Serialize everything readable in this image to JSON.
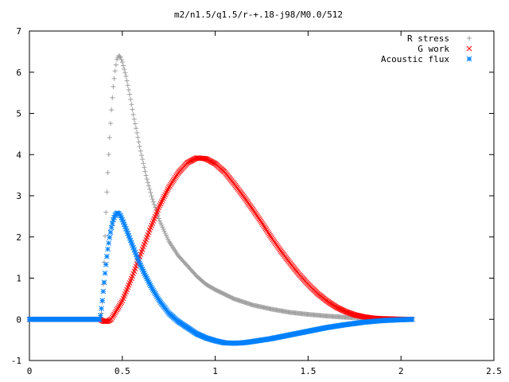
{
  "chart_data": {
    "type": "scatter",
    "title": "m2/n1.5/q1.5/r-+.18-j98/M0.0/512",
    "xlabel": "",
    "ylabel": "",
    "xlim": [
      0,
      2.5
    ],
    "ylim": [
      -1,
      7
    ],
    "grid": false,
    "legend_position": "top-right",
    "xticks": [
      {
        "value": 0,
        "label": "0"
      },
      {
        "value": 0.5,
        "label": "0.5"
      },
      {
        "value": 1,
        "label": "1"
      },
      {
        "value": 1.5,
        "label": "1.5"
      },
      {
        "value": 2,
        "label": "2"
      },
      {
        "value": 2.5,
        "label": "2.5"
      }
    ],
    "yticks": [
      {
        "value": -1,
        "label": "-1"
      },
      {
        "value": 0,
        "label": "0"
      },
      {
        "value": 1,
        "label": "1"
      },
      {
        "value": 2,
        "label": "2"
      },
      {
        "value": 3,
        "label": "3"
      },
      {
        "value": 4,
        "label": "4"
      },
      {
        "value": 5,
        "label": "5"
      },
      {
        "value": 6,
        "label": "6"
      },
      {
        "value": 7,
        "label": "7"
      }
    ],
    "series": [
      {
        "name": "R stress",
        "marker": "plus",
        "color": "#a0a0a0",
        "x": [
          0.0,
          0.1,
          0.2,
          0.3,
          0.38,
          0.39,
          0.4,
          0.41,
          0.42,
          0.43,
          0.44,
          0.45,
          0.46,
          0.47,
          0.48,
          0.49,
          0.5,
          0.52,
          0.54,
          0.56,
          0.58,
          0.6,
          0.63,
          0.66,
          0.7,
          0.75,
          0.8,
          0.85,
          0.9,
          0.95,
          1.0,
          1.1,
          1.2,
          1.3,
          1.4,
          1.5,
          1.6,
          1.7,
          1.8,
          1.9,
          2.0,
          2.06
        ],
        "y": [
          0.0,
          0.0,
          0.0,
          0.0,
          0.0,
          0.2,
          1.1,
          2.4,
          3.4,
          4.3,
          5.0,
          5.6,
          6.0,
          6.3,
          6.4,
          6.37,
          6.25,
          5.9,
          5.45,
          4.95,
          4.5,
          4.05,
          3.45,
          2.95,
          2.4,
          1.9,
          1.55,
          1.3,
          1.05,
          0.85,
          0.72,
          0.5,
          0.35,
          0.25,
          0.17,
          0.12,
          0.08,
          0.05,
          0.03,
          0.02,
          0.01,
          0.0
        ]
      },
      {
        "name": "G work",
        "marker": "cross",
        "color": "#ff0000",
        "x": [
          0.0,
          0.1,
          0.2,
          0.3,
          0.38,
          0.4,
          0.42,
          0.44,
          0.46,
          0.5,
          0.55,
          0.6,
          0.65,
          0.7,
          0.75,
          0.8,
          0.85,
          0.9,
          0.95,
          1.0,
          1.05,
          1.1,
          1.15,
          1.2,
          1.25,
          1.3,
          1.35,
          1.4,
          1.45,
          1.5,
          1.55,
          1.6,
          1.65,
          1.7,
          1.75,
          1.8,
          1.85,
          1.9,
          1.95,
          2.0,
          2.06
        ],
        "y": [
          0.0,
          0.0,
          0.0,
          0.0,
          0.0,
          -0.05,
          -0.05,
          0.0,
          0.15,
          0.45,
          1.0,
          1.6,
          2.2,
          2.75,
          3.2,
          3.55,
          3.8,
          3.92,
          3.9,
          3.78,
          3.58,
          3.3,
          3.0,
          2.68,
          2.35,
          2.0,
          1.68,
          1.38,
          1.1,
          0.85,
          0.63,
          0.45,
          0.3,
          0.19,
          0.11,
          0.06,
          0.03,
          0.015,
          0.01,
          0.0,
          0.0
        ]
      },
      {
        "name": "Acoustic flux",
        "marker": "star",
        "color": "#0080ff",
        "x": [
          0.0,
          0.1,
          0.2,
          0.3,
          0.38,
          0.39,
          0.4,
          0.41,
          0.42,
          0.43,
          0.44,
          0.45,
          0.46,
          0.47,
          0.48,
          0.49,
          0.5,
          0.52,
          0.55,
          0.58,
          0.62,
          0.66,
          0.7,
          0.75,
          0.8,
          0.85,
          0.9,
          0.95,
          1.0,
          1.05,
          1.1,
          1.15,
          1.2,
          1.3,
          1.4,
          1.5,
          1.6,
          1.7,
          1.8,
          1.9,
          2.0,
          2.06
        ],
        "y": [
          0.0,
          0.0,
          0.0,
          0.0,
          0.0,
          0.35,
          0.8,
          1.25,
          1.65,
          1.95,
          2.2,
          2.4,
          2.52,
          2.58,
          2.57,
          2.52,
          2.42,
          2.2,
          1.85,
          1.5,
          1.1,
          0.75,
          0.45,
          0.15,
          -0.05,
          -0.2,
          -0.35,
          -0.45,
          -0.52,
          -0.57,
          -0.58,
          -0.57,
          -0.54,
          -0.47,
          -0.38,
          -0.29,
          -0.2,
          -0.13,
          -0.07,
          -0.03,
          -0.01,
          0.0
        ]
      }
    ]
  }
}
